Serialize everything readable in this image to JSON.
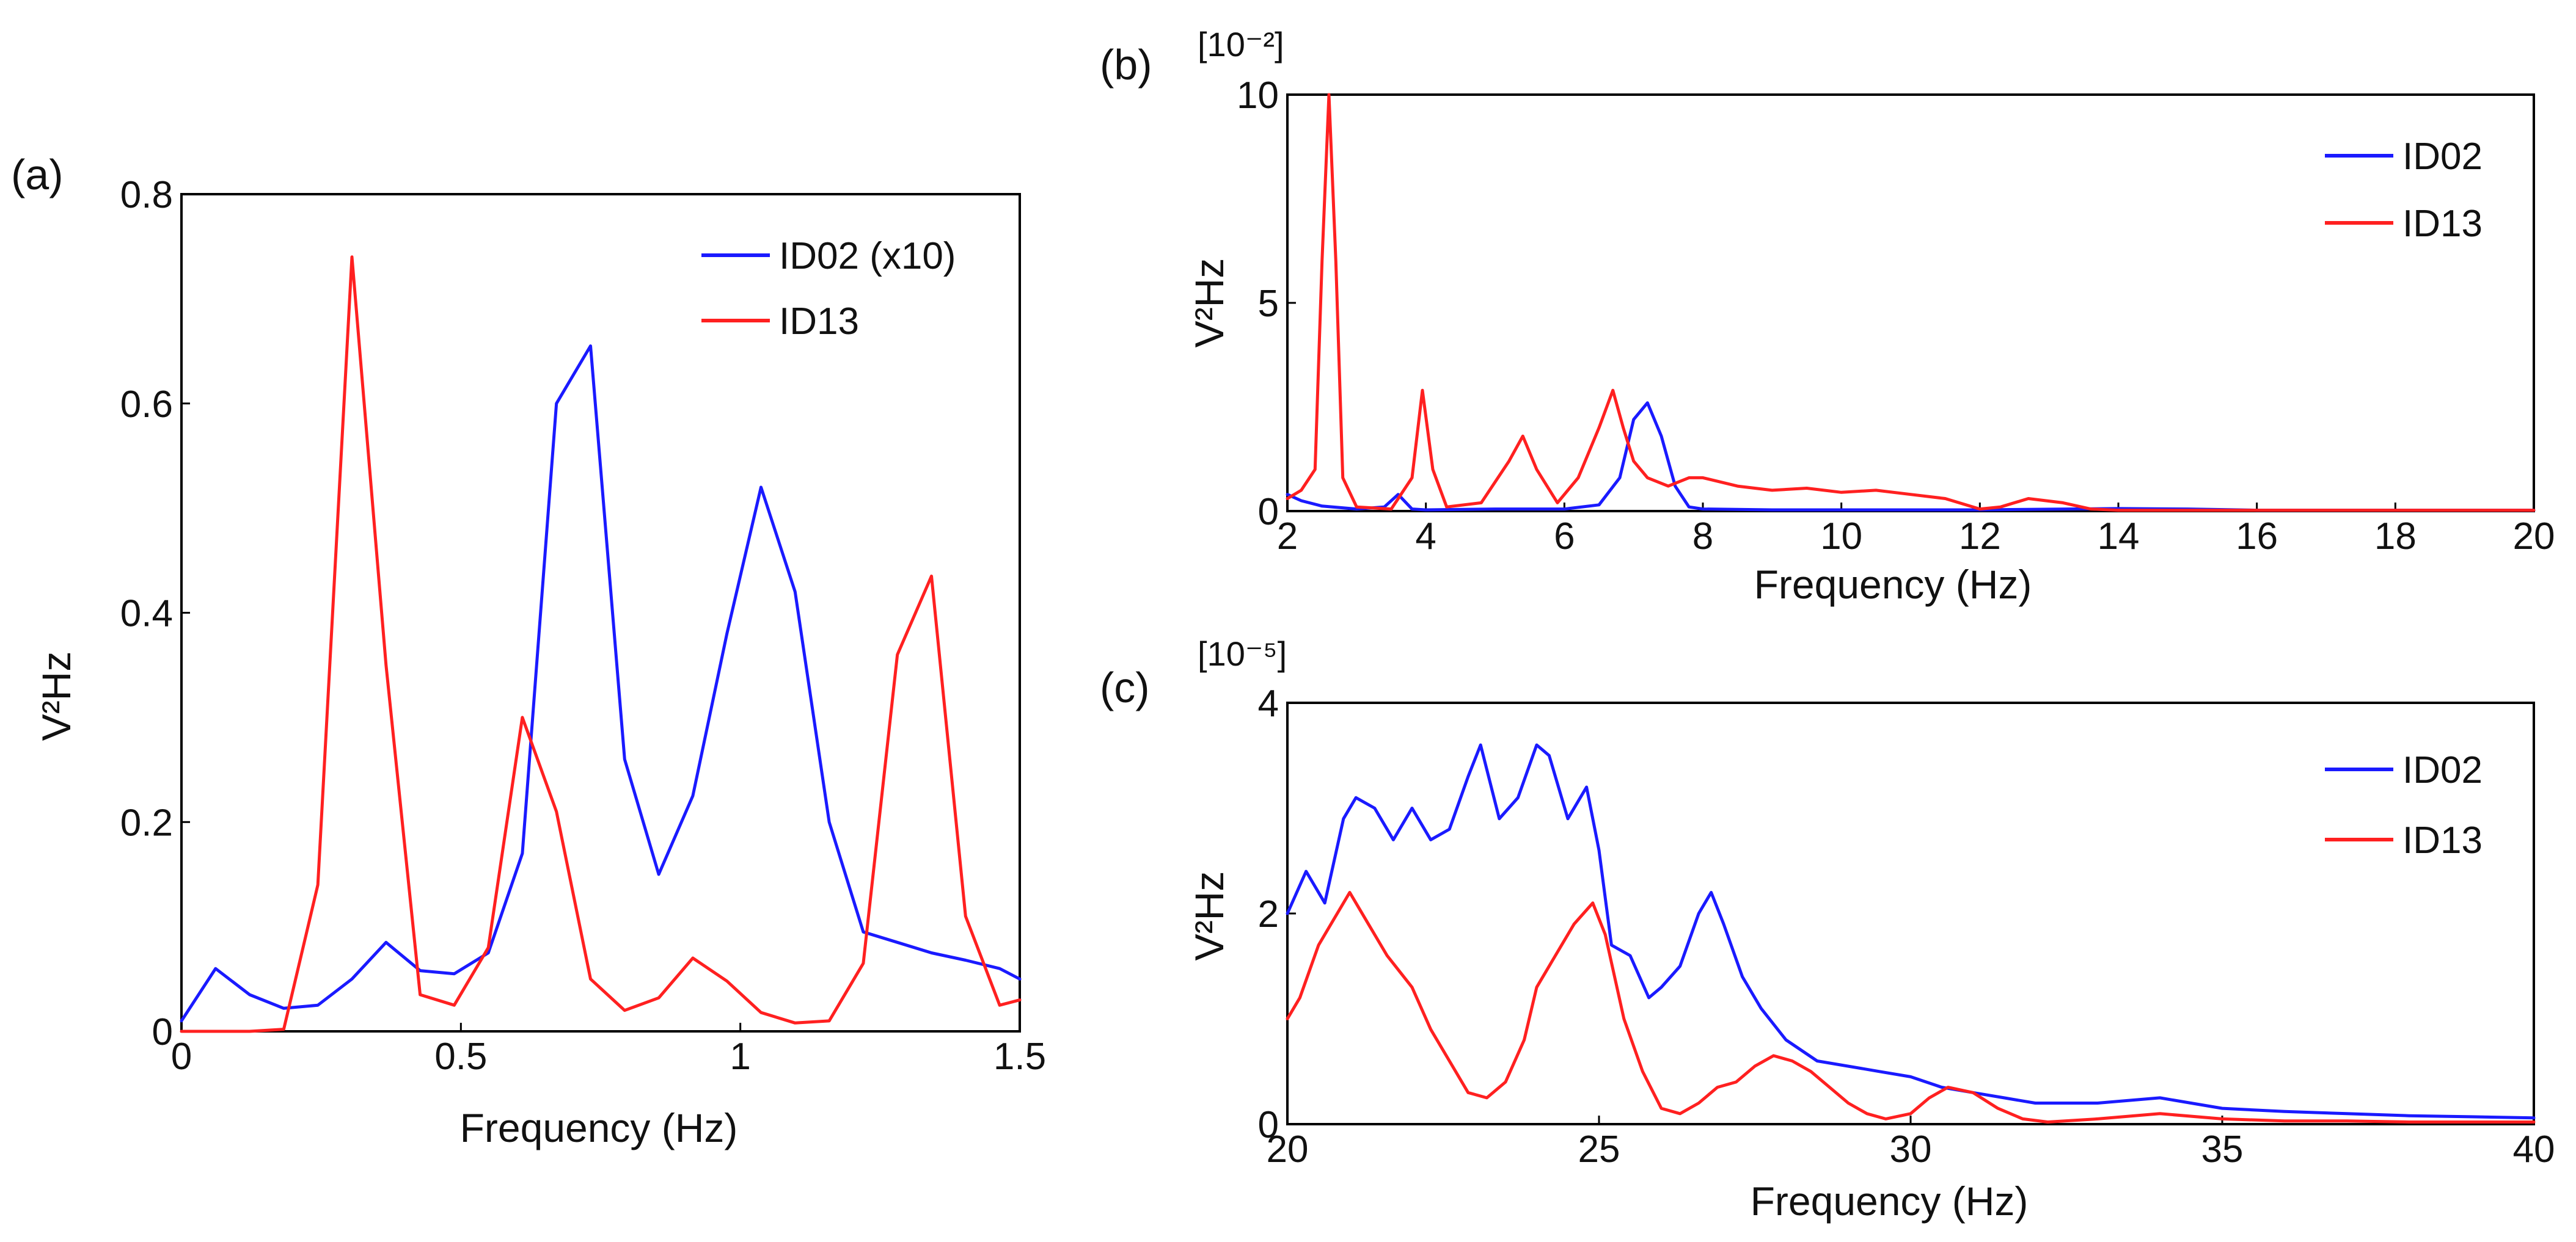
{
  "chart_data": [
    {
      "panel_label": "(a)",
      "type": "line",
      "title": "",
      "xlabel": "Frequency (Hz)",
      "ylabel": "V²Hz",
      "xlim": [
        0,
        1.5
      ],
      "ylim": [
        0,
        0.8
      ],
      "xticks": [
        0,
        0.5,
        1,
        1.5
      ],
      "xtick_labels": [
        "0",
        "0.5",
        "1",
        "1.5"
      ],
      "yticks": [
        0,
        0.2,
        0.4,
        0.6,
        0.8
      ],
      "ytick_labels": [
        "0",
        "0.2",
        "0.4",
        "0.6",
        "0.8"
      ],
      "legend_position": "top-right",
      "series": [
        {
          "name": "ID02 (x10)",
          "color": "#1a1aff",
          "x": [
            0,
            0.061,
            0.122,
            0.183,
            0.244,
            0.305,
            0.366,
            0.427,
            0.488,
            0.549,
            0.61,
            0.671,
            0.732,
            0.793,
            0.854,
            0.915,
            0.976,
            1.037,
            1.098,
            1.159,
            1.22,
            1.281,
            1.342,
            1.403,
            1.464,
            1.5
          ],
          "y": [
            0.01,
            0.06,
            0.035,
            0.022,
            0.025,
            0.05,
            0.085,
            0.058,
            0.055,
            0.075,
            0.17,
            0.6,
            0.655,
            0.26,
            0.15,
            0.225,
            0.38,
            0.52,
            0.42,
            0.2,
            0.095,
            0.085,
            0.075,
            0.068,
            0.06,
            0.05
          ]
        },
        {
          "name": "ID13",
          "color": "#ff2020",
          "x": [
            0,
            0.061,
            0.122,
            0.183,
            0.244,
            0.305,
            0.366,
            0.427,
            0.488,
            0.549,
            0.61,
            0.671,
            0.732,
            0.793,
            0.854,
            0.915,
            0.976,
            1.037,
            1.098,
            1.159,
            1.22,
            1.281,
            1.342,
            1.403,
            1.464,
            1.5
          ],
          "y": [
            0,
            0,
            0,
            0.002,
            0.14,
            0.74,
            0.35,
            0.035,
            0.025,
            0.08,
            0.3,
            0.21,
            0.05,
            0.02,
            0.032,
            0.07,
            0.048,
            0.018,
            0.008,
            0.01,
            0.065,
            0.36,
            0.435,
            0.11,
            0.025,
            0.03
          ]
        }
      ]
    },
    {
      "panel_label": "(b)",
      "type": "line",
      "title": "",
      "multiplier": "[10⁻²]",
      "xlabel": "Frequency (Hz)",
      "ylabel": "V²Hz",
      "xlim": [
        2,
        20
      ],
      "ylim": [
        0,
        10
      ],
      "xticks": [
        2,
        4,
        6,
        8,
        10,
        12,
        14,
        16,
        18,
        20
      ],
      "xtick_labels": [
        "2",
        "4",
        "6",
        "8",
        "10",
        "12",
        "14",
        "16",
        "18",
        "20"
      ],
      "yticks": [
        0,
        5,
        10
      ],
      "ytick_labels": [
        "0",
        "5",
        "10"
      ],
      "legend_position": "top-right",
      "series": [
        {
          "name": "ID02",
          "color": "#1a1aff",
          "x": [
            2,
            2.2,
            2.5,
            3,
            3.4,
            3.6,
            3.8,
            4,
            5,
            6,
            6.5,
            6.8,
            7,
            7.2,
            7.4,
            7.6,
            7.8,
            8,
            9,
            10,
            12,
            14,
            15,
            16,
            20
          ],
          "y": [
            0.4,
            0.25,
            0.12,
            0.05,
            0.1,
            0.4,
            0.05,
            0.03,
            0.05,
            0.05,
            0.15,
            0.8,
            2.2,
            2.6,
            1.8,
            0.6,
            0.1,
            0.05,
            0.03,
            0.03,
            0.03,
            0.06,
            0.05,
            0.02,
            0.02
          ]
        },
        {
          "name": "ID13",
          "color": "#ff2020",
          "x": [
            2,
            2.2,
            2.4,
            2.5,
            2.6,
            2.7,
            2.8,
            3,
            3.5,
            3.8,
            3.95,
            4.1,
            4.3,
            4.8,
            5.2,
            5.4,
            5.6,
            5.9,
            6.2,
            6.5,
            6.7,
            6.85,
            7.0,
            7.2,
            7.5,
            7.8,
            8,
            8.5,
            9,
            9.5,
            10,
            10.5,
            11,
            11.5,
            12,
            12.3,
            12.7,
            13.2,
            13.6,
            14,
            16,
            18,
            20
          ],
          "y": [
            0.3,
            0.5,
            1.0,
            6.0,
            10.0,
            6.0,
            0.8,
            0.1,
            0.05,
            0.8,
            2.9,
            1.0,
            0.1,
            0.2,
            1.2,
            1.8,
            1.0,
            0.2,
            0.8,
            2.0,
            2.9,
            2.0,
            1.2,
            0.8,
            0.6,
            0.8,
            0.8,
            0.6,
            0.5,
            0.55,
            0.45,
            0.5,
            0.4,
            0.3,
            0.05,
            0.1,
            0.3,
            0.2,
            0.05,
            0.02,
            0.02,
            0.02,
            0.02
          ]
        }
      ]
    },
    {
      "panel_label": "(c)",
      "type": "line",
      "title": "",
      "multiplier": "[10⁻⁵]",
      "xlabel": "Frequency (Hz)",
      "ylabel": "V²Hz",
      "xlim": [
        20,
        40
      ],
      "ylim": [
        0,
        4
      ],
      "xticks": [
        20,
        25,
        30,
        35,
        40
      ],
      "xtick_labels": [
        "20",
        "25",
        "30",
        "35",
        "40"
      ],
      "yticks": [
        0,
        2,
        4
      ],
      "ytick_labels": [
        "0",
        "2",
        "4"
      ],
      "legend_position": "top-right",
      "series": [
        {
          "name": "ID02",
          "color": "#1a1aff",
          "x": [
            20,
            20.3,
            20.6,
            20.9,
            21.1,
            21.4,
            21.7,
            22,
            22.3,
            22.6,
            22.9,
            23.1,
            23.4,
            23.7,
            24,
            24.2,
            24.5,
            24.8,
            25,
            25.2,
            25.5,
            25.8,
            26,
            26.3,
            26.6,
            26.8,
            27,
            27.3,
            27.6,
            28,
            28.5,
            29,
            29.5,
            30,
            30.5,
            31,
            31.5,
            32,
            33,
            34,
            35,
            36,
            37,
            38,
            39,
            40
          ],
          "y": [
            2.0,
            2.4,
            2.1,
            2.9,
            3.1,
            3.0,
            2.7,
            3.0,
            2.7,
            2.8,
            3.3,
            3.6,
            2.9,
            3.1,
            3.6,
            3.5,
            2.9,
            3.2,
            2.6,
            1.7,
            1.6,
            1.2,
            1.3,
            1.5,
            2.0,
            2.2,
            1.9,
            1.4,
            1.1,
            0.8,
            0.6,
            0.55,
            0.5,
            0.45,
            0.35,
            0.3,
            0.25,
            0.2,
            0.2,
            0.25,
            0.15,
            0.12,
            0.1,
            0.08,
            0.07,
            0.06
          ]
        },
        {
          "name": "ID13",
          "color": "#ff2020",
          "x": [
            20,
            20.2,
            20.5,
            20.8,
            21,
            21.3,
            21.6,
            22,
            22.3,
            22.6,
            22.9,
            23.2,
            23.5,
            23.8,
            24,
            24.3,
            24.6,
            24.9,
            25.1,
            25.4,
            25.7,
            26,
            26.3,
            26.6,
            26.9,
            27.2,
            27.5,
            27.8,
            28.1,
            28.4,
            28.7,
            29,
            29.3,
            29.6,
            30,
            30.3,
            30.6,
            31,
            31.4,
            31.8,
            32.2,
            33,
            34,
            35,
            36,
            37,
            38,
            39,
            40
          ],
          "y": [
            1.0,
            1.2,
            1.7,
            2.0,
            2.2,
            1.9,
            1.6,
            1.3,
            0.9,
            0.6,
            0.3,
            0.25,
            0.4,
            0.8,
            1.3,
            1.6,
            1.9,
            2.1,
            1.8,
            1.0,
            0.5,
            0.15,
            0.1,
            0.2,
            0.35,
            0.4,
            0.55,
            0.65,
            0.6,
            0.5,
            0.35,
            0.2,
            0.1,
            0.05,
            0.1,
            0.25,
            0.35,
            0.3,
            0.15,
            0.05,
            0.02,
            0.05,
            0.1,
            0.05,
            0.03,
            0.03,
            0.02,
            0.02,
            0.02
          ]
        }
      ]
    }
  ]
}
